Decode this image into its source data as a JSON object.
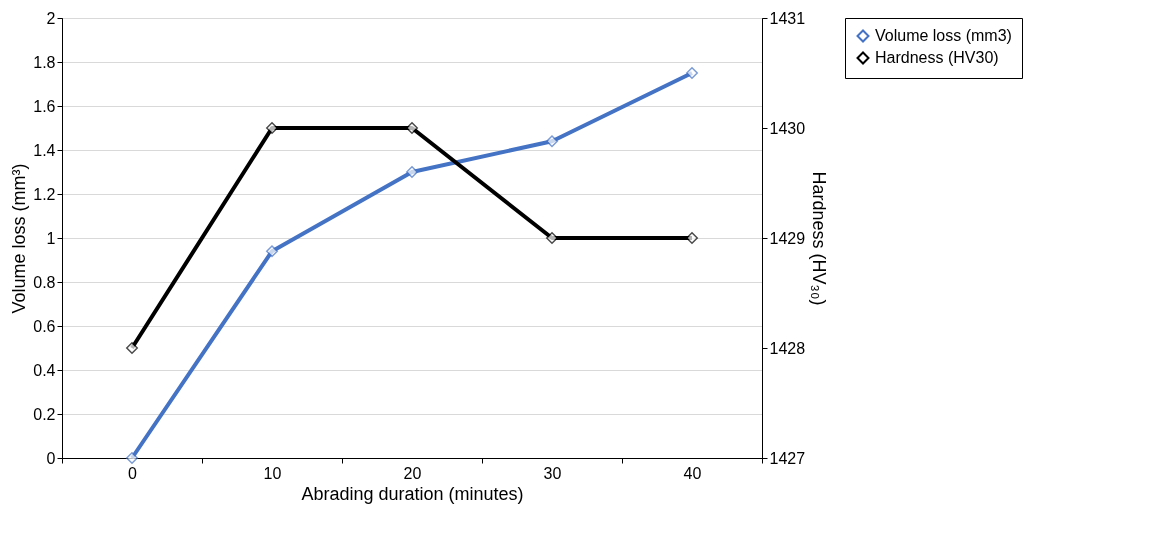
{
  "chart_data": {
    "type": "line",
    "xlabel": "Abrading duration (minutes)",
    "ylabel": "Volume loss (mm³)",
    "y2label": "Hardness (HV₃₀)",
    "categories": [
      "0",
      "10",
      "20",
      "30",
      "40"
    ],
    "series": [
      {
        "name": "Volume loss (mm3)",
        "color": "#4472c4",
        "values": [
          0,
          0.94,
          1.3,
          1.44,
          1.75
        ],
        "axis": "y"
      },
      {
        "name": "Hardness (HV30)",
        "color": "#000000",
        "values": [
          1428,
          1430,
          1430,
          1429,
          1429
        ],
        "axis": "y2"
      }
    ],
    "ylim": [
      0,
      2
    ],
    "yticks": [
      0,
      0.2,
      0.4,
      0.6,
      0.8,
      1,
      1.2,
      1.4,
      1.6,
      1.8,
      2
    ],
    "y2lim": [
      1427,
      1431
    ],
    "y2ticks": [
      1427,
      1428,
      1429,
      1430,
      1431
    ],
    "grid": "y",
    "legend": "top right",
    "marker": "diamond",
    "line_style": "solid"
  }
}
